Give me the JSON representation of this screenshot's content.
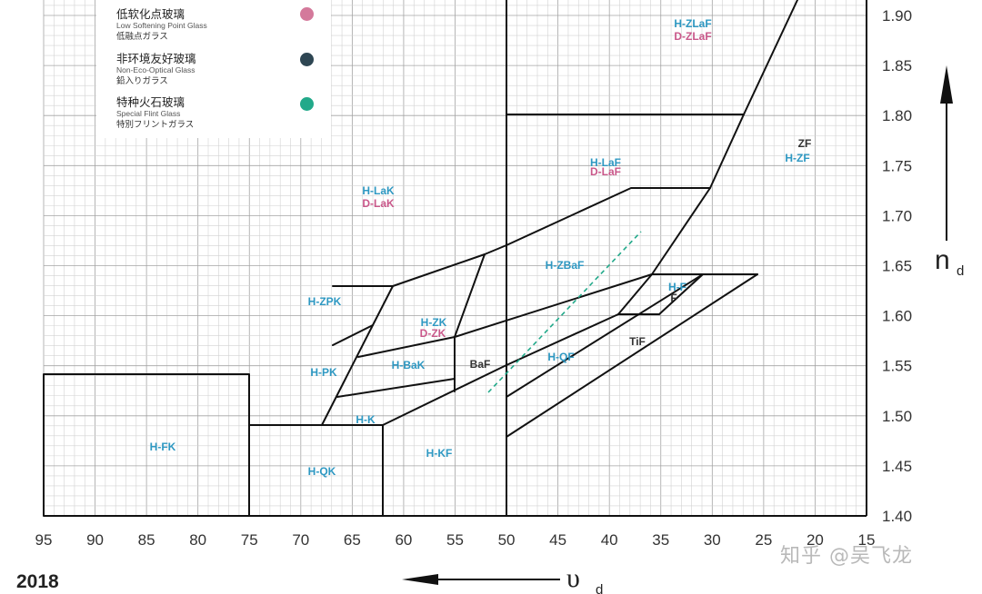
{
  "chart_data": {
    "type": "diagram",
    "year": "2018",
    "x_axis": {
      "symbol": "υ",
      "subscript": "d",
      "ticks": [
        "95",
        "90",
        "85",
        "80",
        "75",
        "70",
        "65",
        "60",
        "55",
        "50",
        "45",
        "40",
        "35",
        "30",
        "25",
        "20",
        "15"
      ]
    },
    "y_axis": {
      "symbol": "n",
      "subscript": "d",
      "ticks": [
        "1.90",
        "1.85",
        "1.80",
        "1.75",
        "1.70",
        "1.65",
        "1.60",
        "1.55",
        "1.50",
        "1.45",
        "1.40"
      ]
    },
    "legend": [
      {
        "zh": "低软化点玻璃",
        "en": "Low Softening Point Glass",
        "jp": "低融点ガラス",
        "color": "#d4799b"
      },
      {
        "zh": "非环境友好玻璃",
        "en": "Non-Eco-Optical Glass",
        "jp": "鉛入りガラス",
        "color": "#2e4653"
      },
      {
        "zh": "特种火石玻璃",
        "en": "Special Flint Glass",
        "jp": "特別フリントガラス",
        "color": "#22a98a"
      }
    ],
    "regions": [
      {
        "label": "H-ZLaF",
        "color": "#2e98c2"
      },
      {
        "label": "D-ZLaF",
        "color": "#c9588a"
      },
      {
        "label": "ZF",
        "color": "#333333"
      },
      {
        "label": "H-ZF",
        "color": "#2e98c2"
      },
      {
        "label": "H-LaF",
        "color": "#2e98c2"
      },
      {
        "label": "D-LaF",
        "color": "#c9588a"
      },
      {
        "label": "H-LaK",
        "color": "#2e98c2"
      },
      {
        "label": "D-LaK",
        "color": "#c9588a"
      },
      {
        "label": "H-ZBaF",
        "color": "#2e98c2"
      },
      {
        "label": "H-ZPK",
        "color": "#2e98c2"
      },
      {
        "label": "H-ZK",
        "color": "#2e98c2"
      },
      {
        "label": "D-ZK",
        "color": "#c9588a"
      },
      {
        "label": "H-F",
        "color": "#2e98c2"
      },
      {
        "label": "F",
        "color": "#333333"
      },
      {
        "label": "TiF",
        "color": "#333333"
      },
      {
        "label": "H-PK",
        "color": "#2e98c2"
      },
      {
        "label": "H-BaK",
        "color": "#2e98c2"
      },
      {
        "label": "BaF",
        "color": "#333333"
      },
      {
        "label": "H-QF",
        "color": "#2e98c2"
      },
      {
        "label": "H-K",
        "color": "#2e98c2"
      },
      {
        "label": "H-FK",
        "color": "#2e98c2"
      },
      {
        "label": "H-QK",
        "color": "#2e98c2"
      },
      {
        "label": "H-KF",
        "color": "#2e98c2"
      }
    ]
  },
  "watermark": "知乎 @吴飞龙"
}
